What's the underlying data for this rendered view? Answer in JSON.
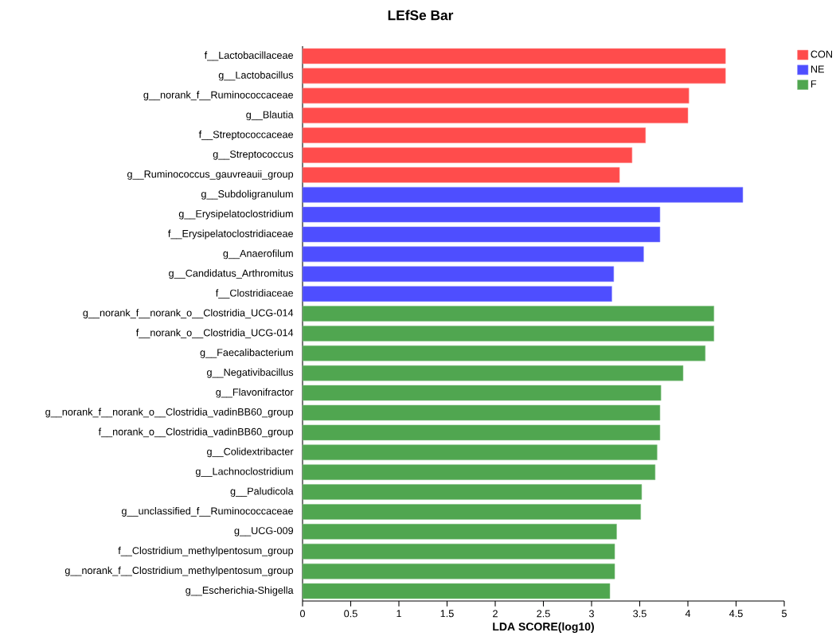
{
  "chart_data": {
    "type": "bar",
    "orientation": "horizontal",
    "title": "LEfSe Bar",
    "xlabel": "LDA SCORE(log10)",
    "categories": [
      "f__Lactobacillaceae",
      "g__Lactobacillus",
      "g__norank_f__Ruminococcaceae",
      "g__Blautia",
      "f__Streptococcaceae",
      "g__Streptococcus",
      "g__Ruminococcus_gauvreauii_group",
      "g__Subdoligranulum",
      "g__Erysipelatoclostridium",
      "f__Erysipelatoclostridiaceae",
      "g__Anaerofilum",
      "g__Candidatus_Arthromitus",
      "f__Clostridiaceae",
      "g__norank_f__norank_o__Clostridia_UCG-014",
      "f__norank_o__Clostridia_UCG-014",
      "g__Faecalibacterium",
      "g__Negativibacillus",
      "g__Flavonifractor",
      "g__norank_f__norank_o__Clostridia_vadinBB60_group",
      "f__norank_o__Clostridia_vadinBB60_group",
      "g__Colidextribacter",
      "g__Lachnoclostridium",
      "g__Paludicola",
      "g__unclassified_f__Ruminococcaceae",
      "g__UCG-009",
      "f__Clostridium_methylpentosum_group",
      "g__norank_f__Clostridium_methylpentosum_group",
      "g__Escherichia-Shigella"
    ],
    "series": [
      {
        "name": "CON",
        "color": "#ff4c4c",
        "values": [
          4.39,
          4.39,
          4.01,
          4.0,
          3.56,
          3.42,
          3.29,
          null,
          null,
          null,
          null,
          null,
          null,
          null,
          null,
          null,
          null,
          null,
          null,
          null,
          null,
          null,
          null,
          null,
          null,
          null,
          null,
          null
        ]
      },
      {
        "name": "NE",
        "color": "#4e4eff",
        "values": [
          null,
          null,
          null,
          null,
          null,
          null,
          null,
          4.57,
          3.71,
          3.71,
          3.54,
          3.23,
          3.21,
          null,
          null,
          null,
          null,
          null,
          null,
          null,
          null,
          null,
          null,
          null,
          null,
          null,
          null,
          null
        ]
      },
      {
        "name": "F",
        "color": "#50a650",
        "values": [
          null,
          null,
          null,
          null,
          null,
          null,
          null,
          null,
          null,
          null,
          null,
          null,
          null,
          4.27,
          4.27,
          4.18,
          3.95,
          3.72,
          3.71,
          3.71,
          3.68,
          3.66,
          3.52,
          3.51,
          3.26,
          3.24,
          3.24,
          3.19
        ]
      }
    ],
    "xlim": [
      0,
      5
    ],
    "xticks": [
      0,
      0.5,
      1,
      1.5,
      2,
      2.5,
      3,
      3.5,
      4,
      4.5,
      5
    ],
    "legend": "top right"
  }
}
